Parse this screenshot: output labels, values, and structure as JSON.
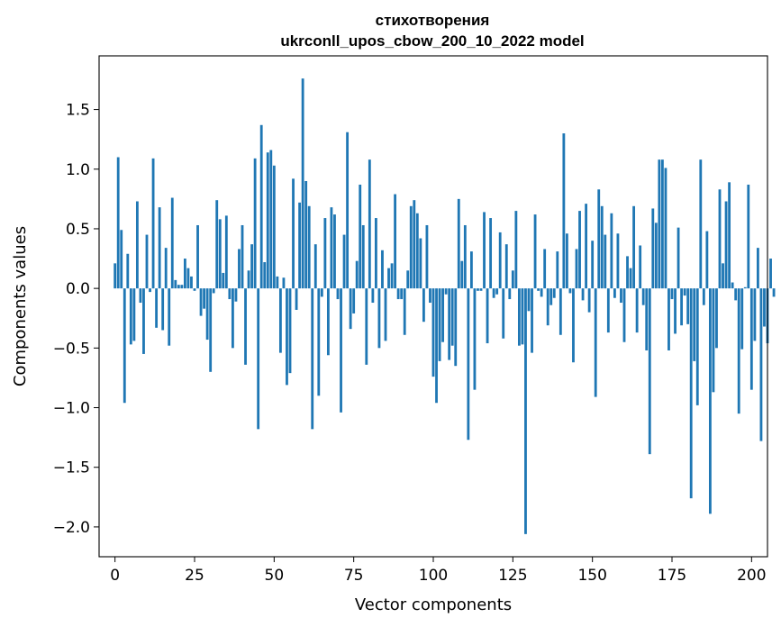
{
  "chart_data": {
    "type": "bar",
    "title": "стихотворения",
    "subtitle": "ukrconll_upos_cbow_200_10_2022 model",
    "xlabel": "Vector components",
    "ylabel": "Components values",
    "xlim": [
      -5,
      205
    ],
    "ylim": [
      -2.25,
      1.95
    ],
    "xticks": [
      0,
      25,
      50,
      75,
      100,
      125,
      150,
      175,
      200
    ],
    "yticks": [
      -2.0,
      -1.5,
      -1.0,
      -0.5,
      0.0,
      0.5,
      1.0,
      1.5
    ],
    "ytick_labels": [
      "−2.0",
      "−1.5",
      "−1.0",
      "−0.5",
      "0.0",
      "0.5",
      "1.0",
      "1.5"
    ],
    "grid": false,
    "bar_color": "#1f77b4",
    "values": [
      0.21,
      1.1,
      0.49,
      -0.96,
      0.29,
      -0.47,
      -0.44,
      0.73,
      -0.12,
      -0.55,
      0.45,
      -0.03,
      1.09,
      -0.33,
      0.68,
      -0.35,
      0.34,
      -0.48,
      0.76,
      0.07,
      0.03,
      0.03,
      0.25,
      0.17,
      0.1,
      -0.02,
      0.53,
      -0.23,
      -0.17,
      -0.43,
      -0.7,
      -0.04,
      0.74,
      0.58,
      0.13,
      0.61,
      -0.09,
      -0.5,
      -0.11,
      0.33,
      0.53,
      -0.64,
      0.15,
      0.37,
      1.09,
      -1.18,
      1.37,
      0.22,
      1.14,
      1.16,
      1.03,
      0.1,
      -0.54,
      0.09,
      -0.81,
      -0.71,
      0.92,
      -0.18,
      0.72,
      1.76,
      0.9,
      0.69,
      -1.18,
      0.37,
      -0.9,
      -0.07,
      0.59,
      -0.56,
      0.68,
      0.62,
      -0.09,
      -1.04,
      0.45,
      1.31,
      -0.34,
      -0.21,
      0.23,
      0.87,
      0.53,
      -0.64,
      1.08,
      -0.12,
      0.59,
      -0.5,
      0.32,
      -0.44,
      0.17,
      0.21,
      0.79,
      -0.09,
      -0.09,
      -0.39,
      0.15,
      0.69,
      0.74,
      0.63,
      0.42,
      -0.28,
      0.53,
      -0.12,
      -0.74,
      -0.96,
      -0.61,
      -0.45,
      -0.05,
      -0.6,
      -0.48,
      -0.65,
      0.75,
      0.23,
      0.53,
      -1.27,
      0.31,
      -0.85,
      -0.02,
      -0.02,
      0.64,
      -0.46,
      0.59,
      -0.08,
      -0.05,
      0.47,
      -0.42,
      0.37,
      -0.09,
      0.15,
      0.65,
      -0.48,
      -0.47,
      -2.06,
      -0.19,
      -0.54,
      0.62,
      -0.02,
      -0.07,
      0.33,
      -0.31,
      -0.14,
      -0.08,
      0.31,
      -0.39,
      1.3,
      0.46,
      -0.04,
      -0.62,
      0.33,
      0.65,
      -0.1,
      0.71,
      -0.2,
      0.4,
      -0.91,
      0.83,
      0.69,
      0.45,
      -0.37,
      0.63,
      -0.08,
      0.46,
      -0.12,
      -0.45,
      0.27,
      0.17,
      0.69,
      -0.37,
      0.36,
      -0.14,
      -0.52,
      -1.39,
      0.67,
      0.55,
      1.08,
      1.08,
      1.01,
      -0.52,
      -0.09,
      -0.38,
      0.51,
      -0.31,
      -0.06,
      -0.3,
      -1.76,
      -0.61,
      -0.98,
      1.08,
      -0.14,
      0.48,
      -1.89,
      -0.87,
      -0.5,
      0.83,
      0.21,
      0.73,
      0.89,
      0.05,
      -0.1,
      -1.05,
      -0.51,
      0.01,
      0.87,
      -0.85,
      -0.44,
      0.34,
      -1.28,
      -0.32,
      -0.46,
      0.25,
      -0.07
    ]
  }
}
